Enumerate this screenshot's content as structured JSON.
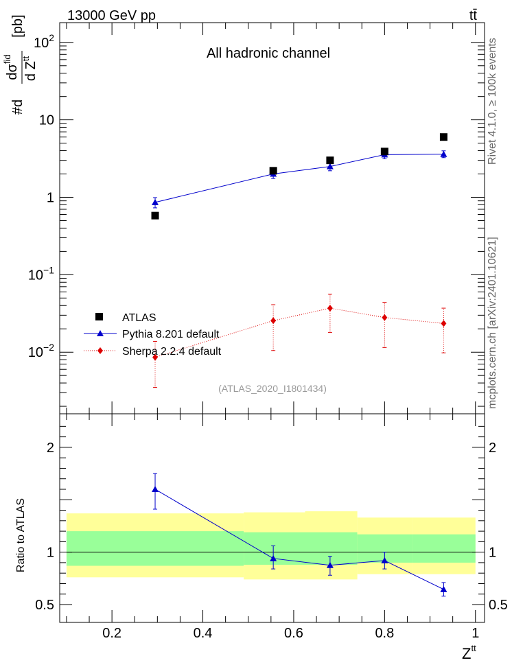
{
  "header": {
    "left": "13000 GeV pp",
    "right": "tt̄"
  },
  "side_labels": {
    "rivet": "Rivet 4.1.0, ≥ 100k events",
    "mcplots": "mcplots.cern.ch [arXiv:2401.10621]"
  },
  "chart_data": [
    {
      "type": "scatter",
      "title": "All hadronic channel",
      "annotation": "(ATLAS_2020_I1801434)",
      "ylabel": "#d dσ^fid / d Z^tt [pb]",
      "ylabel_parts": {
        "prefix": "#d",
        "num_sym": "dσ",
        "num_sup": "fid",
        "den": "d Z",
        "den_sup": "tt",
        "unit": "[pb]"
      },
      "yscale": "log",
      "ylim": [
        0.0016,
        180
      ],
      "xlim": [
        0.085,
        1.02
      ],
      "yticks": [
        {
          "value": 0.01,
          "base": "10",
          "exp": "−2"
        },
        {
          "value": 0.1,
          "base": "10",
          "exp": "−1"
        },
        {
          "value": 1,
          "label": "1"
        },
        {
          "value": 10,
          "label": "10"
        },
        {
          "value": 100,
          "base": "10",
          "exp": "2"
        }
      ],
      "legend_position": "lower-left",
      "series": [
        {
          "name": "ATLAS",
          "marker": "square",
          "color": "#000000",
          "x": [
            0.295,
            0.555,
            0.68,
            0.8,
            0.93
          ],
          "y": [
            0.58,
            2.2,
            3.0,
            3.9,
            6.0
          ]
        },
        {
          "name": "Pythia 8.201 default",
          "marker": "triangle",
          "color": "#0000cc",
          "line": "solid",
          "x": [
            0.295,
            0.555,
            0.68,
            0.8,
            0.93
          ],
          "y": [
            0.86,
            2.0,
            2.5,
            3.55,
            3.6
          ],
          "yerr_lo": [
            0.73,
            1.75,
            2.2,
            3.15,
            3.25
          ],
          "yerr_hi": [
            0.99,
            2.28,
            2.82,
            3.95,
            3.98
          ]
        },
        {
          "name": "Sherpa 2.2.4 default",
          "marker": "diamond",
          "color": "#dd0000",
          "line": "dotted",
          "x": [
            0.295,
            0.555,
            0.68,
            0.8,
            0.93
          ],
          "y": [
            0.0086,
            0.0255,
            0.037,
            0.028,
            0.0235
          ],
          "yerr_lo": [
            0.0035,
            0.0105,
            0.018,
            0.0115,
            0.0098
          ],
          "yerr_hi": [
            0.0138,
            0.041,
            0.056,
            0.044,
            0.037
          ]
        }
      ]
    },
    {
      "type": "scatter",
      "ylabel": "Ratio to ATLAS",
      "xlabel": "Z",
      "xlabel_sup": "tt",
      "ylim": [
        0.33,
        2.32
      ],
      "xlim": [
        0.085,
        1.02
      ],
      "yticks": [
        0.5,
        1,
        2
      ],
      "xticks": [
        0.2,
        0.4,
        0.6,
        0.8,
        1
      ],
      "reference_line": 1,
      "bands": [
        {
          "x0": 0.1,
          "x1": 0.49,
          "yellow": [
            0.76,
            1.37
          ],
          "green": [
            0.87,
            1.2
          ]
        },
        {
          "x0": 0.49,
          "x1": 0.625,
          "yellow": [
            0.74,
            1.38
          ],
          "green": [
            0.88,
            1.19
          ]
        },
        {
          "x0": 0.625,
          "x1": 0.74,
          "yellow": [
            0.74,
            1.39
          ],
          "green": [
            0.88,
            1.19
          ]
        },
        {
          "x0": 0.74,
          "x1": 0.86,
          "yellow": [
            0.79,
            1.33
          ],
          "green": [
            0.9,
            1.17
          ]
        },
        {
          "x0": 0.86,
          "x1": 1.0,
          "yellow": [
            0.79,
            1.33
          ],
          "green": [
            0.9,
            1.17
          ]
        }
      ],
      "series": [
        {
          "name": "Pythia 8.201 default",
          "marker": "triangle",
          "color": "#0000cc",
          "x": [
            0.295,
            0.555,
            0.68,
            0.8,
            0.93
          ],
          "y": [
            1.6,
            0.94,
            0.875,
            0.92,
            0.645
          ],
          "yerr_lo": [
            1.41,
            0.84,
            0.78,
            0.84,
            0.58
          ],
          "yerr_hi": [
            1.75,
            1.06,
            0.96,
            1.0,
            0.71
          ]
        }
      ]
    }
  ]
}
